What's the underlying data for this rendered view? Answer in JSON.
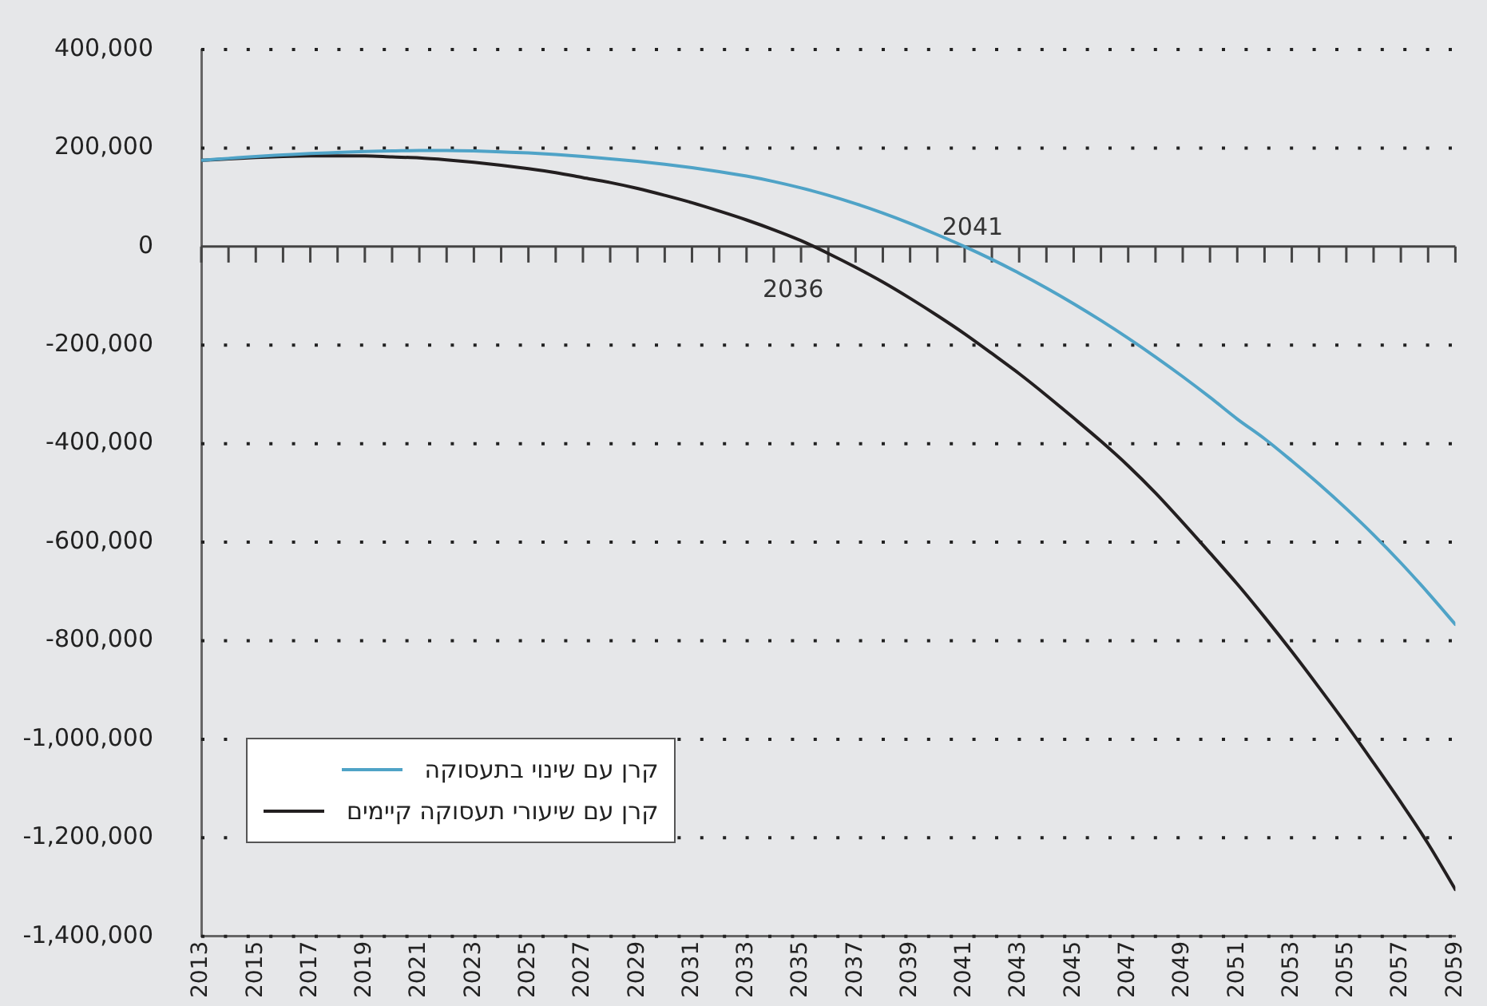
{
  "chart_data": {
    "type": "line",
    "x": [
      2013,
      2014,
      2015,
      2016,
      2017,
      2018,
      2019,
      2020,
      2021,
      2022,
      2023,
      2024,
      2025,
      2026,
      2027,
      2028,
      2029,
      2030,
      2031,
      2032,
      2033,
      2034,
      2035,
      2036,
      2037,
      2038,
      2039,
      2040,
      2041,
      2042,
      2043,
      2044,
      2045,
      2046,
      2047,
      2048,
      2049,
      2050,
      2051,
      2052,
      2053,
      2054,
      2055,
      2056,
      2057,
      2058,
      2059
    ],
    "series": [
      {
        "name": "קרן עם שינוי בתעסוקה",
        "color": "#4fa3c7",
        "values": [
          175000,
          179000,
          183000,
          186000,
          189000,
          191000,
          193000,
          194000,
          195000,
          195000,
          194000,
          192000,
          190000,
          187000,
          183000,
          178000,
          173000,
          167000,
          160000,
          152000,
          143000,
          132000,
          119000,
          104000,
          87000,
          68000,
          47000,
          24000,
          0,
          -26000,
          -54000,
          -84000,
          -116000,
          -150000,
          -186000,
          -224000,
          -264000,
          -306000,
          -350000,
          -390000,
          -435000,
          -482000,
          -532000,
          -585000,
          -642000,
          -703000,
          -767000
        ]
      },
      {
        "name": "קרן עם שיעורי תעסוקה קיימים",
        "color": "#231f20",
        "values": [
          175000,
          178000,
          181000,
          183000,
          184000,
          184000,
          184000,
          182000,
          180000,
          176000,
          171000,
          165000,
          158000,
          150000,
          140000,
          130000,
          118000,
          104000,
          89000,
          72000,
          54000,
          34000,
          12000,
          -14000,
          -42000,
          -72000,
          -105000,
          -140000,
          -177000,
          -217000,
          -258000,
          -302000,
          -348000,
          -395000,
          -445000,
          -500000,
          -560000,
          -622000,
          -685000,
          -752000,
          -822000,
          -895000,
          -970000,
          -1048000,
          -1128000,
          -1212000,
          -1305000
        ]
      }
    ],
    "xlim": [
      2013,
      2059
    ],
    "xticks": [
      2013,
      {
        "value": 2014,
        "label": null
      },
      2015,
      {
        "value": 2016,
        "label": null
      },
      2017,
      {
        "value": 2018,
        "label": null
      },
      2019,
      {
        "value": 2020,
        "label": null
      },
      2021,
      {
        "value": 2022,
        "label": null
      },
      2023,
      {
        "value": 2024,
        "label": null
      },
      2025,
      {
        "value": 2026,
        "label": null
      },
      2027,
      {
        "value": 2028,
        "label": null
      },
      2029,
      {
        "value": 2030,
        "label": null
      },
      2031,
      {
        "value": 2032,
        "label": null
      },
      2033,
      {
        "value": 2034,
        "label": null
      },
      2035,
      {
        "value": 2036,
        "label": null
      },
      2037,
      {
        "value": 2038,
        "label": null
      },
      2039,
      {
        "value": 2040,
        "label": null
      },
      2041,
      {
        "value": 2042,
        "label": null
      },
      2043,
      {
        "value": 2044,
        "label": null
      },
      2045,
      {
        "value": 2046,
        "label": null
      },
      2047,
      {
        "value": 2048,
        "label": null
      },
      2049,
      {
        "value": 2050,
        "label": null
      },
      2051,
      {
        "value": 2052,
        "label": null
      },
      2053,
      {
        "value": 2054,
        "label": null
      },
      2055,
      {
        "value": 2056,
        "label": null
      },
      2057,
      {
        "value": 2058,
        "label": null
      },
      2059
    ],
    "ylim": [
      -1400000,
      400000
    ],
    "yticks": [
      {
        "value": -1400000,
        "label": "-1,400,000"
      },
      {
        "value": -1200000,
        "label": "-1,200,000"
      },
      {
        "value": -1000000,
        "label": "-1,000,000"
      },
      {
        "value": -800000,
        "label": "-800,000"
      },
      {
        "value": -600000,
        "label": "-600,000"
      },
      {
        "value": -400000,
        "label": "-400,000"
      },
      {
        "value": -200000,
        "label": "-200,000"
      },
      0,
      {
        "value": 200000,
        "label": "200,000"
      },
      {
        "value": 400000,
        "label": "400,000"
      }
    ],
    "annotations": [
      {
        "text": "2041",
        "x": 2041,
        "y": 0
      },
      {
        "text": "2036",
        "x": 2036,
        "y": 0
      }
    ],
    "grid": "y",
    "legend": "bottom left",
    "marker": "none",
    "line_style": "solid"
  }
}
